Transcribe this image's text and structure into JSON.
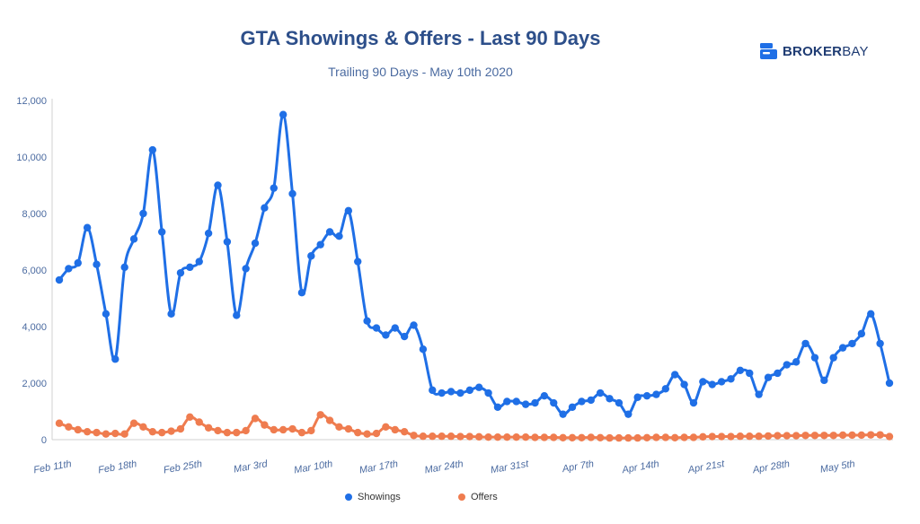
{
  "header": {
    "title": "GTA Showings & Offers - Last 90 Days",
    "subtitle": "Trailing 90 Days - May 10th 2020"
  },
  "logo": {
    "bold": "BROKER",
    "light": "BAY",
    "icon": "brokerbay-logo-icon"
  },
  "colors": {
    "showings": "#1f6fe6",
    "offers": "#ef7c4f",
    "axis": "#4a6aa0",
    "grid": "#e6e6e6"
  },
  "chart_data": {
    "type": "line",
    "title": "GTA Showings & Offers - Last 90 Days",
    "subtitle": "Trailing 90 Days - May 10th 2020",
    "xlabel": "",
    "ylabel": "",
    "ylim": [
      0,
      12000
    ],
    "yticks": [
      0,
      2000,
      4000,
      6000,
      8000,
      10000,
      12000
    ],
    "ytick_labels": [
      "0",
      "2,000",
      "4,000",
      "6,000",
      "8,000",
      "10,000",
      "12,000"
    ],
    "x_tick_labels": [
      "Feb 11th",
      "Feb 18th",
      "Feb 25th",
      "Mar 3rd",
      "Mar 10th",
      "Mar 17th",
      "Mar 24th",
      "Mar 31st",
      "Apr 7th",
      "Apr 14th",
      "Apr 21st",
      "Apr 28th",
      "May 5th"
    ],
    "x_tick_every_days": 7,
    "grid": false,
    "legend_position": "bottom-center",
    "series": [
      {
        "name": "Showings",
        "values": [
          5650,
          6050,
          6250,
          7500,
          6200,
          4450,
          2850,
          6100,
          7100,
          8000,
          10250,
          7350,
          4450,
          5900,
          6100,
          6300,
          7300,
          9000,
          7000,
          4400,
          6050,
          6950,
          8200,
          8900,
          11500,
          8700,
          5200,
          6500,
          6900,
          7350,
          7200,
          8100,
          6300,
          4200,
          3950,
          3700,
          3950,
          3650,
          4050,
          3200,
          1750,
          1650,
          1700,
          1650,
          1750,
          1850,
          1650,
          1150,
          1350,
          1350,
          1250,
          1300,
          1550,
          1300,
          900,
          1150,
          1350,
          1400,
          1650,
          1450,
          1300,
          900,
          1500,
          1550,
          1600,
          1800,
          2300,
          1950,
          1300,
          2050,
          1950,
          2050,
          2150,
          2450,
          2350,
          1600,
          2200,
          2350,
          2650,
          2750,
          3400,
          2900,
          2100,
          2900,
          3250,
          3400,
          3750,
          4450,
          3400,
          2000
        ]
      },
      {
        "name": "Offers",
        "values": [
          580,
          450,
          350,
          280,
          250,
          200,
          220,
          200,
          580,
          450,
          280,
          250,
          300,
          380,
          800,
          620,
          420,
          320,
          250,
          250,
          320,
          750,
          520,
          350,
          350,
          380,
          250,
          320,
          880,
          680,
          450,
          380,
          250,
          200,
          220,
          450,
          350,
          280,
          150,
          120,
          120,
          120,
          120,
          110,
          110,
          100,
          90,
          90,
          90,
          90,
          90,
          80,
          80,
          80,
          70,
          70,
          70,
          80,
          70,
          60,
          60,
          60,
          60,
          70,
          80,
          80,
          70,
          80,
          80,
          100,
          110,
          110,
          110,
          120,
          120,
          120,
          130,
          140,
          140,
          140,
          150,
          150,
          150,
          150,
          160,
          160,
          160,
          170,
          170,
          110
        ]
      }
    ]
  }
}
